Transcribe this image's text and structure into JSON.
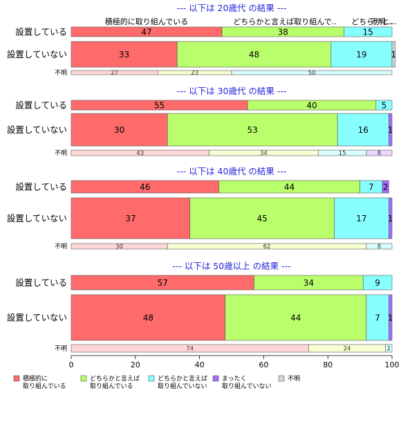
{
  "colors": {
    "positive": "#ff6b6b",
    "somewhat_positive": "#b9ff6b",
    "somewhat_negative": "#87ffff",
    "negative": "#a76bff",
    "unknown": "#d5d5d5"
  },
  "chart_data": {
    "type": "bar",
    "orientation": "horizontal-stacked",
    "xlim": [
      0,
      100
    ],
    "x_ticks": [
      "0",
      "20",
      "40",
      "60",
      "80",
      "100"
    ],
    "column_headers": [
      "積極的に取り組んでいる",
      "どちらかと言えば取り組んで..",
      "どちらかと...",
      "不明..."
    ],
    "legend": [
      {
        "key": "positive",
        "label": [
          "積極的に",
          "取り組んでいる"
        ]
      },
      {
        "key": "somewhat_positive",
        "label": [
          "どちらかと言えば",
          "取り組んでいる"
        ]
      },
      {
        "key": "somewhat_negative",
        "label": [
          "どちらかと言えば",
          "取り組んでいない"
        ]
      },
      {
        "key": "negative",
        "label": [
          "まったく",
          "取り組んでいない"
        ]
      },
      {
        "key": "unknown",
        "label": [
          "不明"
        ]
      }
    ],
    "sections": [
      {
        "title": "--- 以下は 20歳代 の結果 ---",
        "rows": [
          {
            "label": "設置している",
            "values": [
              47,
              38,
              15,
              0,
              0
            ],
            "labels": [
              "47",
              "38",
              "15",
              "",
              ""
            ]
          },
          {
            "label": "設置していない",
            "values": [
              33,
              48,
              19,
              0,
              1
            ],
            "labels": [
              "33",
              "48",
              "19",
              "",
              "1"
            ]
          },
          {
            "label": "不明",
            "small": true,
            "values": [
              27,
              23,
              50,
              0,
              0
            ],
            "labels": [
              "27",
              "23",
              "50",
              "",
              ""
            ]
          }
        ]
      },
      {
        "title": "--- 以下は 30歳代 の結果 ---",
        "rows": [
          {
            "label": "設置している",
            "values": [
              55,
              40,
              5,
              0,
              0
            ],
            "labels": [
              "55",
              "40",
              "5",
              "",
              ""
            ]
          },
          {
            "label": "設置していない",
            "values": [
              30,
              53,
              16,
              1,
              0
            ],
            "labels": [
              "30",
              "53",
              "16",
              "1",
              ""
            ]
          },
          {
            "label": "不明",
            "small": true,
            "values": [
              43,
              34,
              15,
              8,
              0
            ],
            "labels": [
              "43",
              "34",
              "15",
              "8",
              ""
            ]
          }
        ]
      },
      {
        "title": "--- 以下は 40歳代 の結果 ---",
        "rows": [
          {
            "label": "設置している",
            "values": [
              46,
              44,
              7,
              2,
              0
            ],
            "labels": [
              "46",
              "44",
              "7",
              "2",
              ""
            ]
          },
          {
            "label": "設置していない",
            "values": [
              37,
              45,
              17,
              1,
              0
            ],
            "labels": [
              "37",
              "45",
              "17",
              "1",
              ""
            ]
          },
          {
            "label": "不明",
            "small": true,
            "values": [
              30,
              62,
              8,
              0,
              0
            ],
            "labels": [
              "30",
              "62",
              "8",
              "",
              ""
            ]
          }
        ]
      },
      {
        "title": "--- 以下は 50歳以上 の結果 ---",
        "rows": [
          {
            "label": "設置している",
            "values": [
              57,
              34,
              9,
              0,
              0
            ],
            "labels": [
              "57",
              "34",
              "9",
              "",
              ""
            ]
          },
          {
            "label": "設置していない",
            "values": [
              48,
              44,
              7,
              1,
              0
            ],
            "labels": [
              "48",
              "44",
              "7",
              "1",
              ""
            ]
          },
          {
            "label": "不明",
            "small": true,
            "values": [
              74,
              24,
              2,
              0,
              0
            ],
            "labels": [
              "74",
              "24",
              "2",
              "",
              ""
            ]
          }
        ]
      }
    ]
  }
}
